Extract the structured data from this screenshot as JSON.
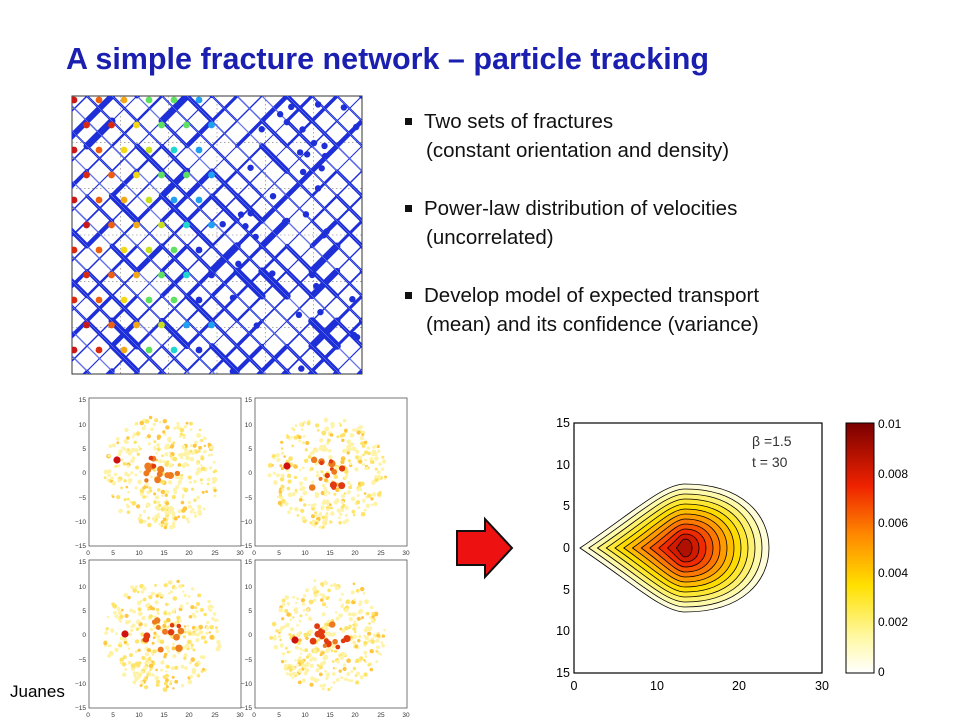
{
  "title": "A simple fracture network – particle tracking",
  "bullets": [
    {
      "line1": "Two sets of fractures",
      "line2": "(constant orientation and density)"
    },
    {
      "line1": "Power-law distribution of velocities",
      "line2": "(uncorrelated)"
    },
    {
      "line1": "Develop model of expected transport",
      "line2": "(mean) and its confidence (variance)"
    }
  ],
  "author": "Juanes",
  "colors": {
    "title": "#1b1fb0",
    "fracture": "#1e2fd8",
    "arrow": "#ee1111"
  },
  "icons": {
    "bullet": "square-bullet-icon",
    "arrow": "right-arrow-icon"
  },
  "small_plots": {
    "x_ticks": [
      "0",
      "5",
      "10",
      "15",
      "20",
      "25",
      "30"
    ],
    "y_ticks": [
      "15",
      "10",
      "5",
      "0",
      "−5",
      "−10",
      "−15"
    ]
  },
  "contour_plot": {
    "annotation_beta": "β =1.5",
    "annotation_t": "t = 30",
    "x_ticks": [
      "0",
      "10",
      "20",
      "30"
    ],
    "y_ticks": [
      "15",
      "10",
      "5",
      "0",
      "5",
      "10",
      "15"
    ],
    "colorbar_ticks": [
      "0.01",
      "0.008",
      "0.006",
      "0.004",
      "0.002",
      "0"
    ]
  }
}
